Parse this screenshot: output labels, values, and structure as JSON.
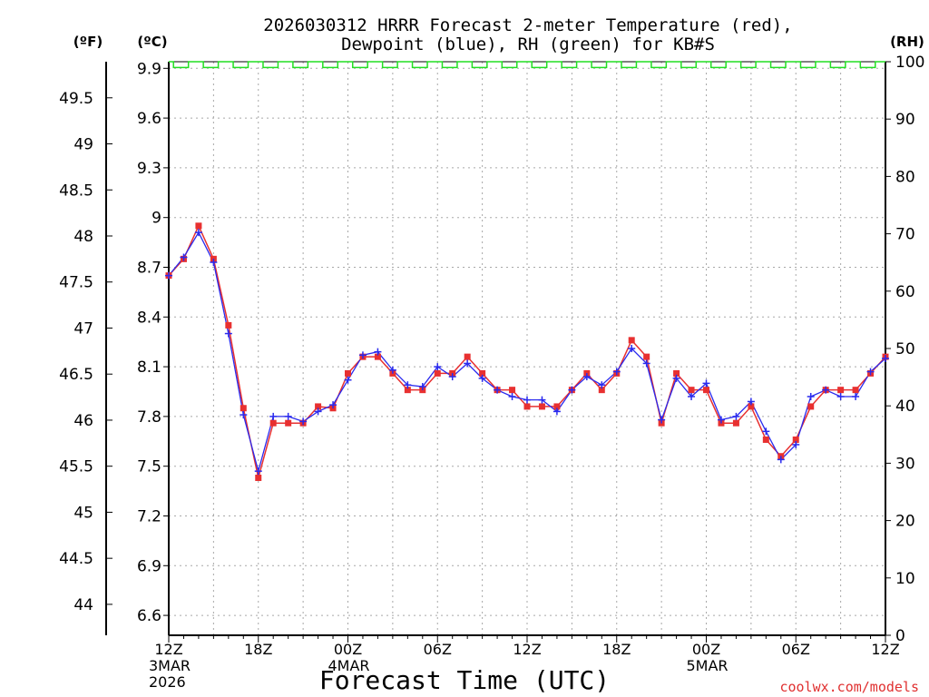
{
  "chart_data": {
    "type": "line",
    "title_lines": [
      "2026030312 HRRR Forecast 2-meter Temperature (red),",
      "Dewpoint (blue), RH (green) for KB#S"
    ],
    "unit_labels": {
      "fahrenheit": "(ºF)",
      "celsius": "(ºC)",
      "rh": "(RH)"
    },
    "xlabel": "Forecast Time (UTC)",
    "credit": "coolwx.com/models",
    "x_hours": [
      0,
      1,
      2,
      3,
      4,
      5,
      6,
      7,
      8,
      9,
      10,
      11,
      12,
      13,
      14,
      15,
      16,
      17,
      18,
      19,
      20,
      21,
      22,
      23,
      24,
      25,
      26,
      27,
      28,
      29,
      30,
      31,
      32,
      33,
      34,
      35,
      36,
      37,
      38,
      39,
      40,
      41,
      42,
      43,
      44,
      45,
      46,
      47,
      48
    ],
    "x_range": [
      0,
      48
    ],
    "x_ticks": [
      {
        "hour": 0,
        "lines": [
          "12Z",
          "3MAR",
          "2026"
        ]
      },
      {
        "hour": 6,
        "lines": [
          "18Z"
        ]
      },
      {
        "hour": 12,
        "lines": [
          "00Z",
          "4MAR"
        ]
      },
      {
        "hour": 18,
        "lines": [
          "06Z"
        ]
      },
      {
        "hour": 24,
        "lines": [
          "12Z"
        ]
      },
      {
        "hour": 30,
        "lines": [
          "18Z"
        ]
      },
      {
        "hour": 36,
        "lines": [
          "00Z",
          "5MAR"
        ]
      },
      {
        "hour": 42,
        "lines": [
          "06Z"
        ]
      },
      {
        "hour": 48,
        "lines": [
          "12Z"
        ]
      }
    ],
    "celsius_ticks": [
      "6.6",
      "6.9",
      "7.2",
      "7.5",
      "7.8",
      "8.1",
      "8.4",
      "8.7",
      "9",
      "9.3",
      "9.6",
      "9.9"
    ],
    "fahrenheit_ticks": [
      "44",
      "44.5",
      "45",
      "45.5",
      "46",
      "46.5",
      "47",
      "47.5",
      "48",
      "48.5",
      "49",
      "49.5"
    ],
    "rh_ticks": [
      "0",
      "10",
      "20",
      "30",
      "40",
      "50",
      "60",
      "70",
      "80",
      "90",
      "100"
    ],
    "celsius_range": [
      6.48,
      9.94
    ],
    "rh_range": [
      0,
      100
    ],
    "series": [
      {
        "name": "Temperature",
        "color": "#e83030",
        "unit": "C",
        "values": [
          8.65,
          8.75,
          8.95,
          8.75,
          8.35,
          7.85,
          7.43,
          7.76,
          7.76,
          7.76,
          7.86,
          7.85,
          8.06,
          8.16,
          8.16,
          8.06,
          7.96,
          7.96,
          8.06,
          8.06,
          8.16,
          8.06,
          7.96,
          7.96,
          7.86,
          7.86,
          7.86,
          7.96,
          8.06,
          7.96,
          8.06,
          8.26,
          8.16,
          7.76,
          8.06,
          7.96,
          7.96,
          7.76,
          7.76,
          7.86,
          7.66,
          7.56,
          7.66,
          7.86,
          7.96,
          7.96,
          7.96,
          8.06,
          8.16
        ]
      },
      {
        "name": "Dewpoint",
        "color": "#2a2aee",
        "unit": "C",
        "values": [
          8.65,
          8.76,
          8.91,
          8.73,
          8.3,
          7.81,
          7.47,
          7.8,
          7.8,
          7.77,
          7.83,
          7.87,
          8.02,
          8.17,
          8.19,
          8.08,
          7.99,
          7.98,
          8.1,
          8.04,
          8.12,
          8.03,
          7.96,
          7.92,
          7.9,
          7.9,
          7.83,
          7.96,
          8.04,
          7.99,
          8.07,
          8.21,
          8.12,
          7.78,
          8.03,
          7.92,
          8.0,
          7.78,
          7.8,
          7.89,
          7.71,
          7.54,
          7.63,
          7.92,
          7.96,
          7.92,
          7.92,
          8.07,
          8.15
        ]
      },
      {
        "name": "RH",
        "color": "#22dd22",
        "unit": "%",
        "values": [
          100,
          99,
          100,
          99,
          100,
          99,
          100,
          99,
          100,
          99,
          100,
          99,
          100,
          99,
          100,
          99,
          100,
          99,
          100,
          99,
          100,
          99,
          100,
          99,
          100,
          99,
          100,
          99,
          100,
          99,
          100,
          99,
          100,
          99,
          100,
          99,
          100,
          99,
          100,
          99,
          100,
          99,
          100,
          99,
          100,
          99,
          100,
          99,
          100
        ]
      }
    ],
    "grid": true
  }
}
